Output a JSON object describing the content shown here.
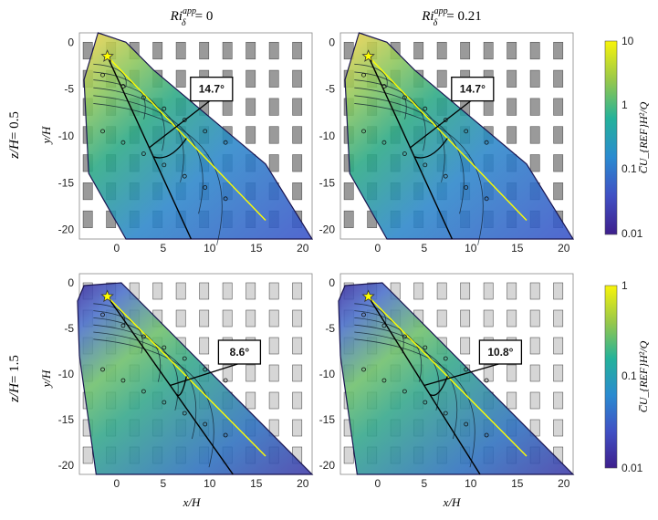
{
  "chart_data": [
    {
      "type": "heatmap",
      "panel": "top-left",
      "column_title_main": "Ri",
      "column_title_sup": "app",
      "column_title_sub": "δ",
      "column_title_value": "= 0",
      "row_label_main": "z/H",
      "row_label_value": "= 0.5",
      "ylabel": "y/H",
      "xlabel": "",
      "xlim": [
        -4,
        21
      ],
      "ylim": [
        -21,
        1
      ],
      "xticks": [
        "0",
        "5",
        "10",
        "15",
        "20"
      ],
      "yticks": [
        "0",
        "-5",
        "-10",
        "-15",
        "-20"
      ],
      "source": {
        "x": -1,
        "y": -1.5
      },
      "centerline_end": {
        "x": 16,
        "y": -19
      },
      "plume_axis_end": {
        "x": 8,
        "y": -21
      },
      "angle_label": "14.7°"
    },
    {
      "type": "heatmap",
      "panel": "top-right",
      "column_title_main": "Ri",
      "column_title_sup": "app",
      "column_title_sub": "δ",
      "column_title_value": "= 0.21",
      "xlabel": "",
      "xlim": [
        -4,
        21
      ],
      "ylim": [
        -21,
        1
      ],
      "xticks": [
        "0",
        "5",
        "10",
        "15",
        "20"
      ],
      "yticks": [
        "0",
        "-5",
        "-10",
        "-15",
        "-20"
      ],
      "source": {
        "x": -1,
        "y": -1.5
      },
      "centerline_end": {
        "x": 16,
        "y": -19
      },
      "plume_axis_end": {
        "x": 8,
        "y": -21
      },
      "angle_label": "14.7°"
    },
    {
      "type": "heatmap",
      "panel": "bottom-left",
      "row_label_main": "z/H",
      "row_label_value": "= 1.5",
      "ylabel": "y/H",
      "xlabel": "x/H",
      "xlim": [
        -4,
        21
      ],
      "ylim": [
        -21,
        1
      ],
      "xticks": [
        "0",
        "5",
        "10",
        "15",
        "20"
      ],
      "yticks": [
        "0",
        "-5",
        "-10",
        "-15",
        "-20"
      ],
      "source": {
        "x": -1,
        "y": -1.5
      },
      "centerline_end": {
        "x": 16,
        "y": -19
      },
      "plume_axis_end": {
        "x": 12.5,
        "y": -21
      },
      "angle_label": "8.6°"
    },
    {
      "type": "heatmap",
      "panel": "bottom-right",
      "xlabel": "x/H",
      "xlim": [
        -4,
        21
      ],
      "ylim": [
        -21,
        1
      ],
      "xticks": [
        "0",
        "5",
        "10",
        "15",
        "20"
      ],
      "yticks": [
        "0",
        "-5",
        "-10",
        "-15",
        "-20"
      ],
      "source": {
        "x": -1,
        "y": -1.5
      },
      "centerline_end": {
        "x": 16,
        "y": -19
      },
      "plume_axis_end": {
        "x": 11,
        "y": -21
      },
      "angle_label": "10.8°"
    }
  ],
  "colorbars": [
    {
      "scale": "log",
      "ticks": [
        "10",
        "1",
        "0.1",
        "0.01"
      ],
      "label": "C̅U_{REF}H²/Q",
      "colormap": "viridis"
    },
    {
      "scale": "log",
      "ticks": [
        "1",
        "0.1",
        "0.01"
      ],
      "label": "C̅U_{REF}H²/Q",
      "colormap": "viridis"
    }
  ],
  "colors": {
    "centerline": "#ffff00",
    "source_marker": "#ffff00",
    "plume_axis": "#000000",
    "buildings": "#a0a0a0"
  }
}
